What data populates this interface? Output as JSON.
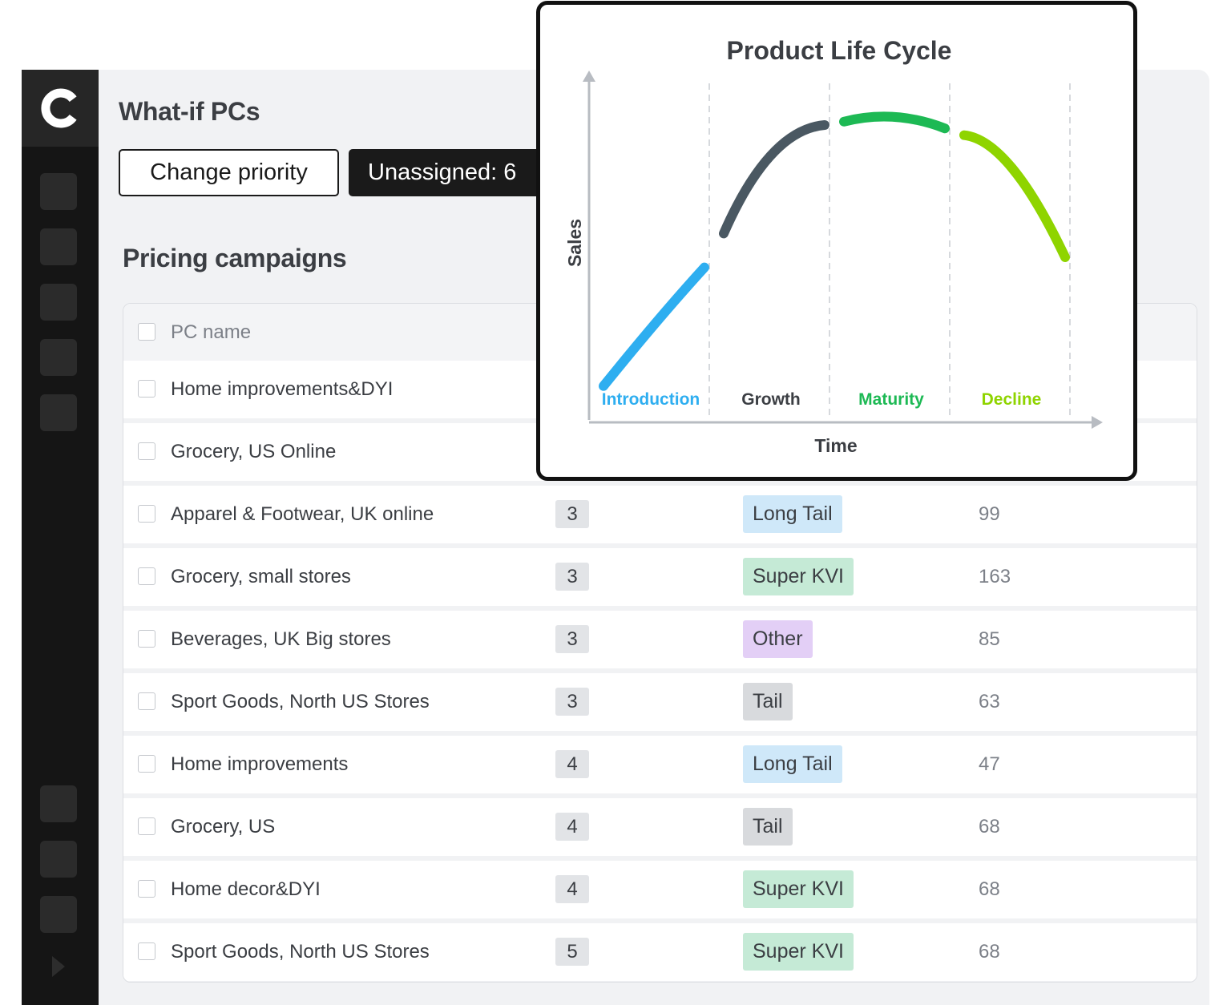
{
  "page": {
    "title": "What-if PCs",
    "change_priority_label": "Change priority",
    "unassigned_label": "Unassigned: 6"
  },
  "section": {
    "title": "Pricing campaigns"
  },
  "table": {
    "header": {
      "pc_name": "PC name"
    },
    "rows": [
      {
        "name": "Home improvements&DYI"
      },
      {
        "name": "Grocery, US Online"
      },
      {
        "name": "Apparel & Footwear, UK online",
        "priority": "3",
        "tag": "Long Tail",
        "count": "99"
      },
      {
        "name": "Grocery, small stores",
        "priority": "3",
        "tag": "Super KVI",
        "count": "163"
      },
      {
        "name": "Beverages, UK Big stores",
        "priority": "3",
        "tag": "Other",
        "count": "85"
      },
      {
        "name": "Sport Goods, North US Stores",
        "priority": "3",
        "tag": "Tail",
        "count": "63"
      },
      {
        "name": "Home improvements",
        "priority": "4",
        "tag": "Long Tail",
        "count": "47"
      },
      {
        "name": "Grocery, US",
        "priority": "4",
        "tag": "Tail",
        "count": "68"
      },
      {
        "name": "Home decor&DYI",
        "priority": "4",
        "tag": "Super KVI",
        "count": "68"
      },
      {
        "name": "Sport Goods, North US Stores",
        "priority": "5",
        "tag": "Super KVI",
        "count": "68"
      }
    ]
  },
  "tag_colors": {
    "Long Tail": "#cfe8f9",
    "Super KVI": "#c5ead6",
    "Other": "#e3cff6",
    "Tail": "#d8dadd"
  },
  "icons": {
    "logo": "logo-icon",
    "expand": "expand-icon"
  },
  "chart_data": {
    "type": "line",
    "title": "Product Life Cycle",
    "xlabel": "Time",
    "ylabel": "Sales",
    "grid": false,
    "stages": [
      {
        "name": "Introduction",
        "color": "#2eaef0",
        "x": [
          0,
          1
        ],
        "y": [
          0.1,
          0.45
        ]
      },
      {
        "name": "Growth",
        "color": "#4a5862",
        "x": [
          1,
          2
        ],
        "y": [
          0.55,
          0.87
        ]
      },
      {
        "name": "Maturity",
        "color": "#1db954",
        "x": [
          2,
          3
        ],
        "y": [
          0.88,
          0.86
        ]
      },
      {
        "name": "Decline",
        "color": "#8fd400",
        "x": [
          3,
          4
        ],
        "y": [
          0.84,
          0.48
        ]
      }
    ]
  }
}
